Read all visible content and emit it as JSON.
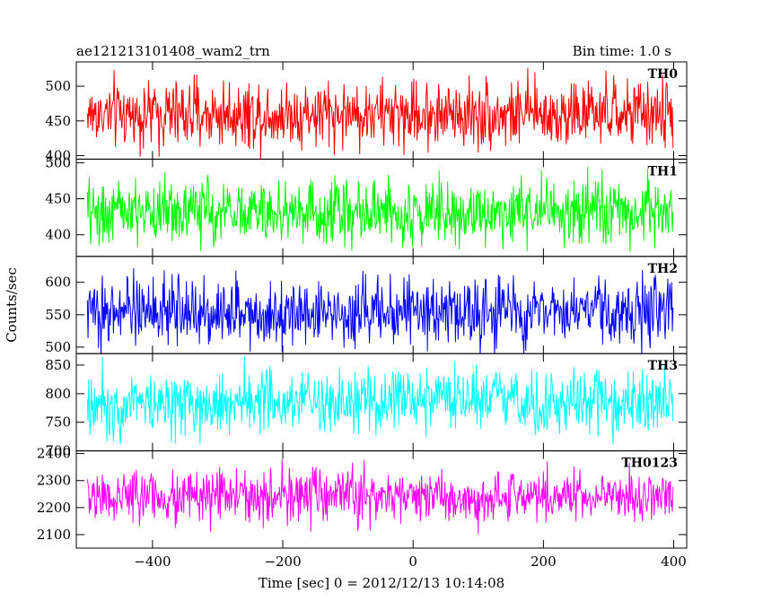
{
  "header": {
    "left_title": "ae121213101408_wam2_trn",
    "right_title": "Bin time: 1.0 s"
  },
  "chart_data": {
    "type": "line",
    "title": "ae121213101408_wam2_trn",
    "subtitle": "Bin time: 1.0 s",
    "xlabel": "Time [sec] 0 = 2012/12/13 10:14:08",
    "ylabel": "Counts/sec",
    "xlim": [
      -517,
      420
    ],
    "x_range": [
      -500,
      399
    ],
    "x_step": 1,
    "x_ticks": [
      -400,
      -200,
      0,
      200,
      400
    ],
    "x_tick_labels": [
      "−400",
      "−200",
      "0",
      "200",
      "400"
    ],
    "grid": false,
    "series": [
      {
        "name": "TH0",
        "color": "#ff0000",
        "mean": 460,
        "spread": 24,
        "ylim": [
          395,
          535
        ],
        "y_ticks": [
          400,
          450,
          500
        ],
        "y_tick_labels": [
          "400",
          "450",
          "500"
        ]
      },
      {
        "name": "TH1",
        "color": "#00ff00",
        "mean": 432,
        "spread": 22,
        "ylim": [
          370,
          505
        ],
        "y_ticks": [
          400,
          450,
          500
        ],
        "y_tick_labels": [
          "400",
          "450",
          "500"
        ]
      },
      {
        "name": "TH2",
        "color": "#0000ff",
        "mean": 555,
        "spread": 25,
        "ylim": [
          490,
          640
        ],
        "y_ticks": [
          500,
          550,
          600
        ],
        "y_tick_labels": [
          "500",
          "550",
          "600"
        ]
      },
      {
        "name": "TH3",
        "color": "#00ffff",
        "mean": 785,
        "spread": 28,
        "ylim": [
          700,
          870
        ],
        "y_ticks": [
          700,
          750,
          800,
          850
        ],
        "y_tick_labels": [
          "700",
          "750",
          "800",
          "850"
        ]
      },
      {
        "name": "TH0123",
        "color": "#ff00ff",
        "mean": 2240,
        "spread": 48,
        "ylim": [
          2050,
          2410
        ],
        "y_ticks": [
          2100,
          2200,
          2300,
          2400
        ],
        "y_tick_labels": [
          "2100",
          "2200",
          "2300",
          "2400"
        ]
      }
    ]
  }
}
